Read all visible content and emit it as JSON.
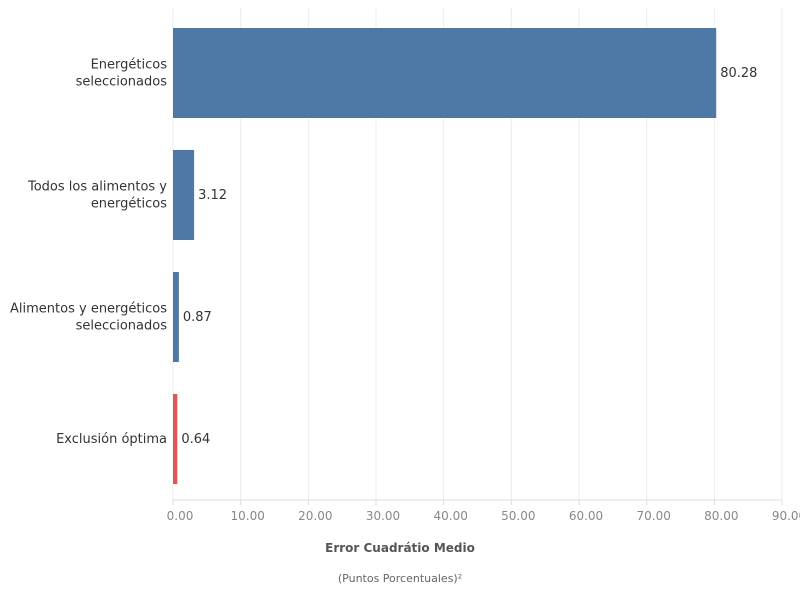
{
  "chart_data": {
    "type": "bar",
    "orientation": "horizontal",
    "categories": [
      [
        "Energéticos",
        "seleccionados"
      ],
      [
        "Todos los alimentos y",
        "energéticos"
      ],
      [
        "Alimentos y energéticos",
        "seleccionados"
      ],
      [
        "Exclusión óptima"
      ]
    ],
    "values": [
      80.28,
      3.12,
      0.87,
      0.64
    ],
    "value_labels": [
      "80.28",
      "3.12",
      "0.87",
      "0.64"
    ],
    "bar_colors": [
      "#4e79a7",
      "#4e79a7",
      "#4e79a7",
      "#e15759"
    ],
    "xlim": [
      0,
      90
    ],
    "ticks": [
      0,
      10,
      20,
      30,
      40,
      50,
      60,
      70,
      80,
      90
    ],
    "tick_labels": [
      "0.00",
      "10.00",
      "20.00",
      "30.00",
      "40.00",
      "50.00",
      "60.00",
      "70.00",
      "80.00",
      "90.00"
    ],
    "xlabel": "Error Cuadrátio Medio",
    "xlabel_sub": "(Puntos Porcentuales)²",
    "grid": true,
    "legend": "none"
  }
}
